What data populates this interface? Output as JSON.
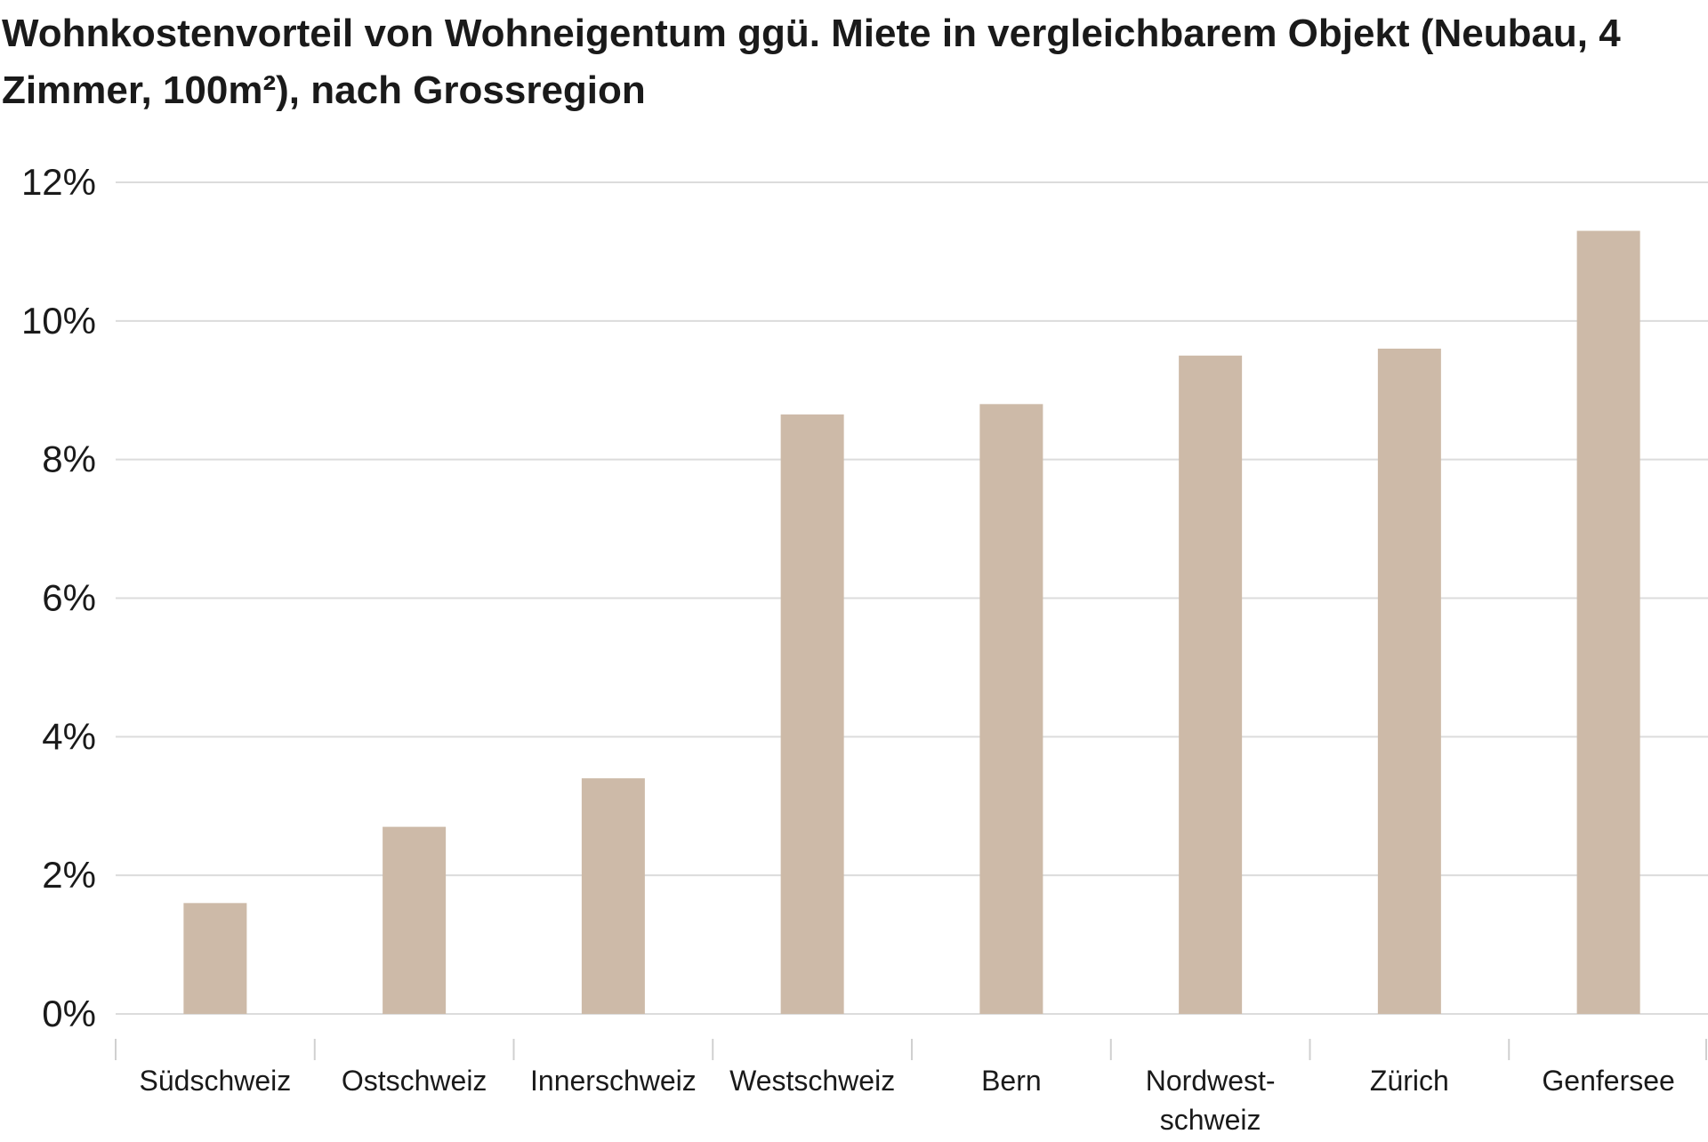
{
  "chart_data": {
    "type": "bar",
    "title": "Wohnkostenvorteil von Wohneigentum ggü. Miete in vergleichbarem Objekt (Neubau, 4 Zimmer, 100m²), nach Grossregion",
    "categories": [
      "Südschweiz",
      "Ostschweiz",
      "Innerschweiz",
      "Westschweiz",
      "Bern",
      "Nordwest-\nschweiz",
      "Zürich",
      "Genfersee"
    ],
    "values": [
      1.6,
      2.7,
      3.4,
      8.65,
      8.8,
      9.5,
      9.6,
      11.3
    ],
    "y_ticks": [
      "0%",
      "2%",
      "4%",
      "6%",
      "8%",
      "10%",
      "12%"
    ],
    "ylim": [
      0,
      12
    ],
    "grid": true,
    "legend": "none",
    "bar_color": "#cdbaa8"
  }
}
